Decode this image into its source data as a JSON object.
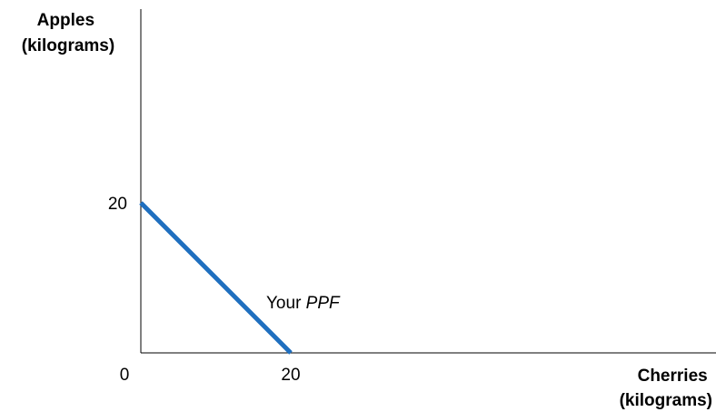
{
  "chart_data": {
    "type": "line",
    "title": "",
    "xlabel": {
      "line1": "Cherries",
      "line2": "(kilograms)"
    },
    "ylabel": {
      "line1": "Apples",
      "line2": "(kilograms)"
    },
    "xlim": [
      0,
      20
    ],
    "ylim": [
      0,
      20
    ],
    "origin_label": "0",
    "x_ticks": [
      {
        "value": 20,
        "label": "20"
      }
    ],
    "y_ticks": [
      {
        "value": 20,
        "label": "20"
      }
    ],
    "grid": false,
    "series": [
      {
        "name": "Your PPF",
        "name_plain": "Your ",
        "name_italic": "PPF",
        "color": "#1f6fbf",
        "points": [
          {
            "x": 0,
            "y": 20
          },
          {
            "x": 20,
            "y": 0
          }
        ]
      }
    ]
  }
}
